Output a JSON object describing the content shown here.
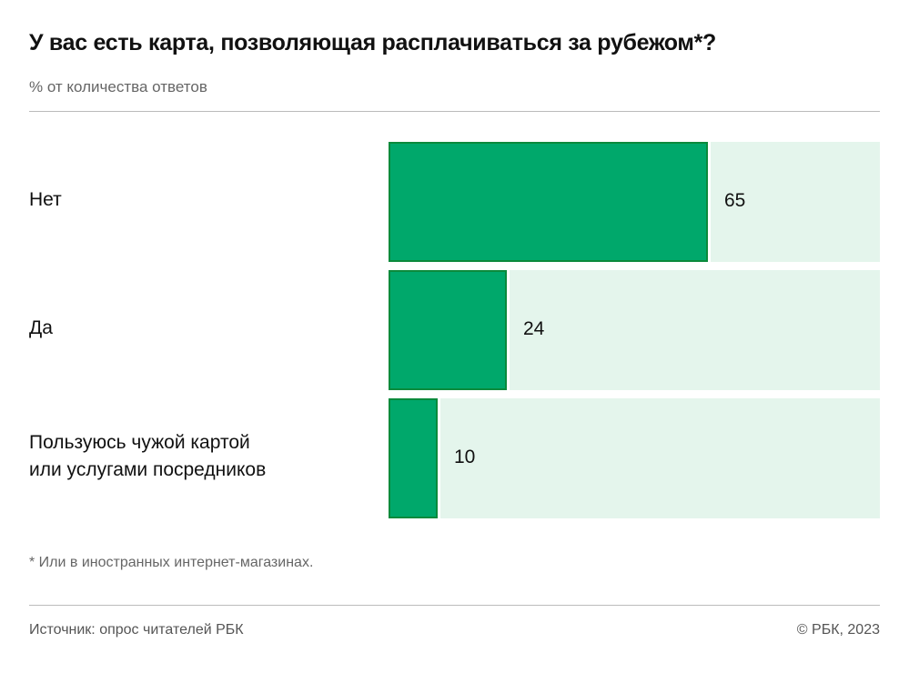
{
  "chart_data": {
    "type": "bar",
    "orientation": "horizontal",
    "title": "У вас есть карта, позволяющая расплачиваться за рубежом*?",
    "subtitle": "% от количества ответов",
    "categories": [
      "Нет",
      "Да",
      "Пользуюсь чужой картой или услугами посредников"
    ],
    "category_lines": [
      [
        "Нет"
      ],
      [
        "Да"
      ],
      [
        "Пользуюсь чужой картой",
        "или услугами посредников"
      ]
    ],
    "values": [
      65,
      24,
      10
    ],
    "value_labels": [
      "65",
      "24",
      "10"
    ],
    "xlim": [
      0,
      100
    ],
    "grid": false,
    "colors": {
      "fill": "#00a86b",
      "border": "#0b8a3c",
      "track": "#e4f5ec"
    }
  },
  "footnote": "* Или в иностранных интернет-магазинах.",
  "source": "Источник: опрос читателей РБК",
  "copyright": "© РБК, 2023"
}
